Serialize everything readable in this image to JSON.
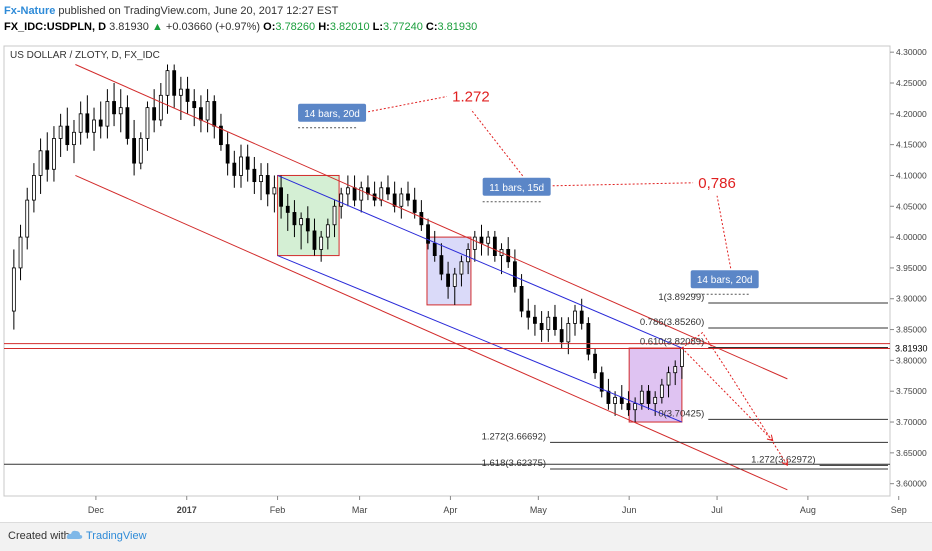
{
  "header": {
    "publisher": "Fx-Nature",
    "published_text": "published on TradingView.com, June 20, 2017 12:27 EST",
    "symbol": "FX_IDC:USDPLN, D",
    "last": "3.81930",
    "change_arrow": "▲",
    "change": "+0.03660 (+0.97%)",
    "o_label": "O:",
    "o_value": "3.78260",
    "h_label": "H:",
    "h_value": "3.82010",
    "l_label": "L:",
    "l_value": "3.77240",
    "c_label": "C:",
    "c_value": "3.81930"
  },
  "footer": {
    "created_with": "Created with",
    "brand": "TradingView",
    "logo_icon": "tradingview-cloud-icon"
  },
  "colors": {
    "up": "#1a9e3c",
    "channel_red": "#d22b2b",
    "channel_blue": "#2a2ad8",
    "label_box": "#5b86c7",
    "fib_red": "#e02020",
    "box_green": "#cdeccd",
    "box_blue": "#d4d4f8",
    "box_purple": "#d9b8f0"
  },
  "chart_data": {
    "type": "candlestick",
    "title": "US DOLLAR / ZLOTY, D, FX_IDC",
    "ylim": [
      3.58,
      4.31
    ],
    "yticks": [
      "4.30000",
      "4.25000",
      "4.20000",
      "4.15000",
      "4.10000",
      "4.05000",
      "4.00000",
      "3.95000",
      "3.90000",
      "3.85000",
      "3.80000",
      "3.75000",
      "3.70000",
      "3.65000",
      "3.60000"
    ],
    "xticks": [
      "Dec",
      "2017",
      "Feb",
      "Mar",
      "Apr",
      "May",
      "Jun",
      "Jul",
      "Aug",
      "Sep"
    ],
    "current_price": "3.81930",
    "candles_ohlc": [
      [
        3.88,
        3.98,
        3.85,
        3.95
      ],
      [
        3.95,
        4.02,
        3.93,
        4.0
      ],
      [
        4.0,
        4.08,
        3.98,
        4.06
      ],
      [
        4.06,
        4.12,
        4.04,
        4.1
      ],
      [
        4.1,
        4.16,
        4.07,
        4.14
      ],
      [
        4.14,
        4.17,
        4.09,
        4.11
      ],
      [
        4.11,
        4.18,
        4.09,
        4.16
      ],
      [
        4.16,
        4.2,
        4.13,
        4.18
      ],
      [
        4.18,
        4.21,
        4.14,
        4.15
      ],
      [
        4.15,
        4.19,
        4.12,
        4.17
      ],
      [
        4.17,
        4.22,
        4.15,
        4.2
      ],
      [
        4.2,
        4.23,
        4.16,
        4.17
      ],
      [
        4.17,
        4.21,
        4.14,
        4.19
      ],
      [
        4.19,
        4.22,
        4.16,
        4.18
      ],
      [
        4.18,
        4.24,
        4.16,
        4.22
      ],
      [
        4.22,
        4.25,
        4.18,
        4.2
      ],
      [
        4.2,
        4.24,
        4.17,
        4.21
      ],
      [
        4.21,
        4.23,
        4.15,
        4.16
      ],
      [
        4.16,
        4.19,
        4.1,
        4.12
      ],
      [
        4.12,
        4.17,
        4.11,
        4.16
      ],
      [
        4.16,
        4.22,
        4.14,
        4.21
      ],
      [
        4.21,
        4.24,
        4.17,
        4.19
      ],
      [
        4.19,
        4.25,
        4.18,
        4.23
      ],
      [
        4.23,
        4.28,
        4.2,
        4.27
      ],
      [
        4.27,
        4.28,
        4.21,
        4.23
      ],
      [
        4.23,
        4.26,
        4.19,
        4.24
      ],
      [
        4.24,
        4.26,
        4.2,
        4.22
      ],
      [
        4.22,
        4.24,
        4.18,
        4.21
      ],
      [
        4.21,
        4.23,
        4.17,
        4.19
      ],
      [
        4.19,
        4.24,
        4.17,
        4.22
      ],
      [
        4.22,
        4.23,
        4.16,
        4.18
      ],
      [
        4.18,
        4.2,
        4.14,
        4.15
      ],
      [
        4.15,
        4.17,
        4.1,
        4.12
      ],
      [
        4.12,
        4.14,
        4.08,
        4.1
      ],
      [
        4.1,
        4.15,
        4.08,
        4.13
      ],
      [
        4.13,
        4.15,
        4.09,
        4.11
      ],
      [
        4.11,
        4.13,
        4.07,
        4.09
      ],
      [
        4.09,
        4.12,
        4.06,
        4.1
      ],
      [
        4.1,
        4.12,
        4.05,
        4.07
      ],
      [
        4.07,
        4.1,
        4.04,
        4.08
      ],
      [
        4.08,
        4.1,
        4.03,
        4.05
      ],
      [
        4.05,
        4.07,
        4.01,
        4.04
      ],
      [
        4.04,
        4.06,
        4.0,
        4.02
      ],
      [
        4.02,
        4.04,
        3.98,
        4.03
      ],
      [
        4.03,
        4.05,
        3.99,
        4.01
      ],
      [
        4.01,
        4.03,
        3.97,
        3.98
      ],
      [
        3.98,
        4.01,
        3.96,
        4.0
      ],
      [
        4.0,
        4.03,
        3.98,
        4.02
      ],
      [
        4.02,
        4.06,
        4.0,
        4.05
      ],
      [
        4.05,
        4.08,
        4.03,
        4.07
      ],
      [
        4.07,
        4.1,
        4.05,
        4.08
      ],
      [
        4.08,
        4.1,
        4.05,
        4.06
      ],
      [
        4.06,
        4.09,
        4.04,
        4.08
      ],
      [
        4.08,
        4.1,
        4.06,
        4.07
      ],
      [
        4.07,
        4.09,
        4.05,
        4.06
      ],
      [
        4.06,
        4.09,
        4.05,
        4.08
      ],
      [
        4.08,
        4.1,
        4.06,
        4.07
      ],
      [
        4.07,
        4.09,
        4.04,
        4.05
      ],
      [
        4.05,
        4.08,
        4.03,
        4.07
      ],
      [
        4.07,
        4.09,
        4.05,
        4.06
      ],
      [
        4.06,
        4.08,
        4.03,
        4.04
      ],
      [
        4.04,
        4.06,
        4.01,
        4.02
      ],
      [
        4.02,
        4.03,
        3.98,
        3.99
      ],
      [
        3.99,
        4.01,
        3.96,
        3.97
      ],
      [
        3.97,
        3.99,
        3.93,
        3.94
      ],
      [
        3.94,
        3.96,
        3.9,
        3.92
      ],
      [
        3.92,
        3.95,
        3.89,
        3.94
      ],
      [
        3.94,
        3.97,
        3.92,
        3.96
      ],
      [
        3.96,
        3.99,
        3.94,
        3.98
      ],
      [
        3.98,
        4.01,
        3.96,
        4.0
      ],
      [
        4.0,
        4.02,
        3.97,
        3.99
      ],
      [
        3.99,
        4.01,
        3.97,
        4.0
      ],
      [
        4.0,
        4.01,
        3.96,
        3.97
      ],
      [
        3.97,
        3.99,
        3.94,
        3.98
      ],
      [
        3.98,
        4.0,
        3.95,
        3.96
      ],
      [
        3.96,
        3.98,
        3.91,
        3.92
      ],
      [
        3.92,
        3.94,
        3.87,
        3.88
      ],
      [
        3.88,
        3.9,
        3.85,
        3.87
      ],
      [
        3.87,
        3.89,
        3.84,
        3.86
      ],
      [
        3.86,
        3.88,
        3.83,
        3.85
      ],
      [
        3.85,
        3.88,
        3.83,
        3.87
      ],
      [
        3.87,
        3.89,
        3.84,
        3.85
      ],
      [
        3.85,
        3.87,
        3.82,
        3.83
      ],
      [
        3.83,
        3.87,
        3.81,
        3.86
      ],
      [
        3.86,
        3.89,
        3.84,
        3.88
      ],
      [
        3.88,
        3.9,
        3.85,
        3.86
      ],
      [
        3.86,
        3.87,
        3.8,
        3.81
      ],
      [
        3.81,
        3.82,
        3.77,
        3.78
      ],
      [
        3.78,
        3.79,
        3.74,
        3.75
      ],
      [
        3.75,
        3.77,
        3.72,
        3.73
      ],
      [
        3.73,
        3.75,
        3.71,
        3.74
      ],
      [
        3.74,
        3.76,
        3.72,
        3.73
      ],
      [
        3.73,
        3.75,
        3.71,
        3.72
      ],
      [
        3.72,
        3.74,
        3.7,
        3.73
      ],
      [
        3.73,
        3.76,
        3.72,
        3.75
      ],
      [
        3.75,
        3.76,
        3.72,
        3.73
      ],
      [
        3.73,
        3.75,
        3.71,
        3.74
      ],
      [
        3.74,
        3.77,
        3.73,
        3.76
      ],
      [
        3.76,
        3.79,
        3.74,
        3.78
      ],
      [
        3.78,
        3.8,
        3.76,
        3.79
      ],
      [
        3.79,
        3.82,
        3.77,
        3.82
      ]
    ],
    "channels": [
      {
        "color": "red",
        "from": [
          "2016-11-24",
          4.28
        ],
        "to": [
          "2017-07-25",
          3.77
        ]
      },
      {
        "color": "red",
        "from": [
          "2016-11-24",
          4.1
        ],
        "to": [
          "2017-07-25",
          3.59
        ]
      },
      {
        "color": "blue",
        "from": [
          "2017-02-01",
          4.1
        ],
        "to": [
          "2017-06-19",
          3.82
        ]
      },
      {
        "color": "blue",
        "from": [
          "2017-02-01",
          3.97
        ],
        "to": [
          "2017-06-19",
          3.7
        ]
      }
    ],
    "boxes": [
      {
        "color": "green",
        "x0": "2017-02-01",
        "x1": "2017-02-22",
        "y0": 3.97,
        "y1": 4.1
      },
      {
        "color": "blue",
        "x0": "2017-03-24",
        "x1": "2017-04-08",
        "y0": 3.89,
        "y1": 4.0
      },
      {
        "color": "purple",
        "x0": "2017-06-01",
        "x1": "2017-06-19",
        "y0": 3.7,
        "y1": 3.82
      }
    ],
    "bar_labels": [
      {
        "text": "14 bars, 20d",
        "x": "2017-02-08",
        "y": 4.2
      },
      {
        "text": "11 bars, 15d",
        "x": "2017-04-12",
        "y": 4.08
      },
      {
        "text": "14 bars, 20d",
        "x": "2017-06-22",
        "y": 3.93
      }
    ],
    "fib_ratio_labels": [
      {
        "text": "1.272",
        "x": "2017-04-08",
        "y": 4.22
      },
      {
        "text": "0,786",
        "x": "2017-07-01",
        "y": 4.08
      }
    ],
    "fib_levels": [
      {
        "label": "1(3.89299)",
        "value": 3.89299,
        "x_from": "2017-06-28"
      },
      {
        "label": "0.786(3.85260)",
        "value": 3.8526,
        "x_from": "2017-06-28"
      },
      {
        "label": "0.610(3.82089)",
        "value": 3.82089,
        "x_from": "2017-06-28"
      },
      {
        "label": "0(3.70425)",
        "value": 3.70425,
        "x_from": "2017-06-28"
      },
      {
        "label": "1.272(3.66692)",
        "value": 3.66692,
        "x_from": "2017-05-05"
      },
      {
        "label": "1.618(3.62375)",
        "value": 3.62375,
        "x_from": "2017-05-05"
      },
      {
        "label": "1.272(3.62972)",
        "value": 3.62972,
        "x_from": "2017-08-05"
      }
    ],
    "horizontal_lines": [
      3.8272,
      3.8193,
      3.6315
    ],
    "projection_path": [
      [
        "2017-06-19",
        3.82
      ],
      [
        "2017-06-26",
        3.845
      ],
      [
        "2017-07-05",
        3.78
      ],
      [
        "2017-07-25",
        3.63
      ]
    ],
    "projection_path_2": [
      [
        "2017-06-19",
        3.82
      ],
      [
        "2017-07-20",
        3.67
      ]
    ]
  }
}
